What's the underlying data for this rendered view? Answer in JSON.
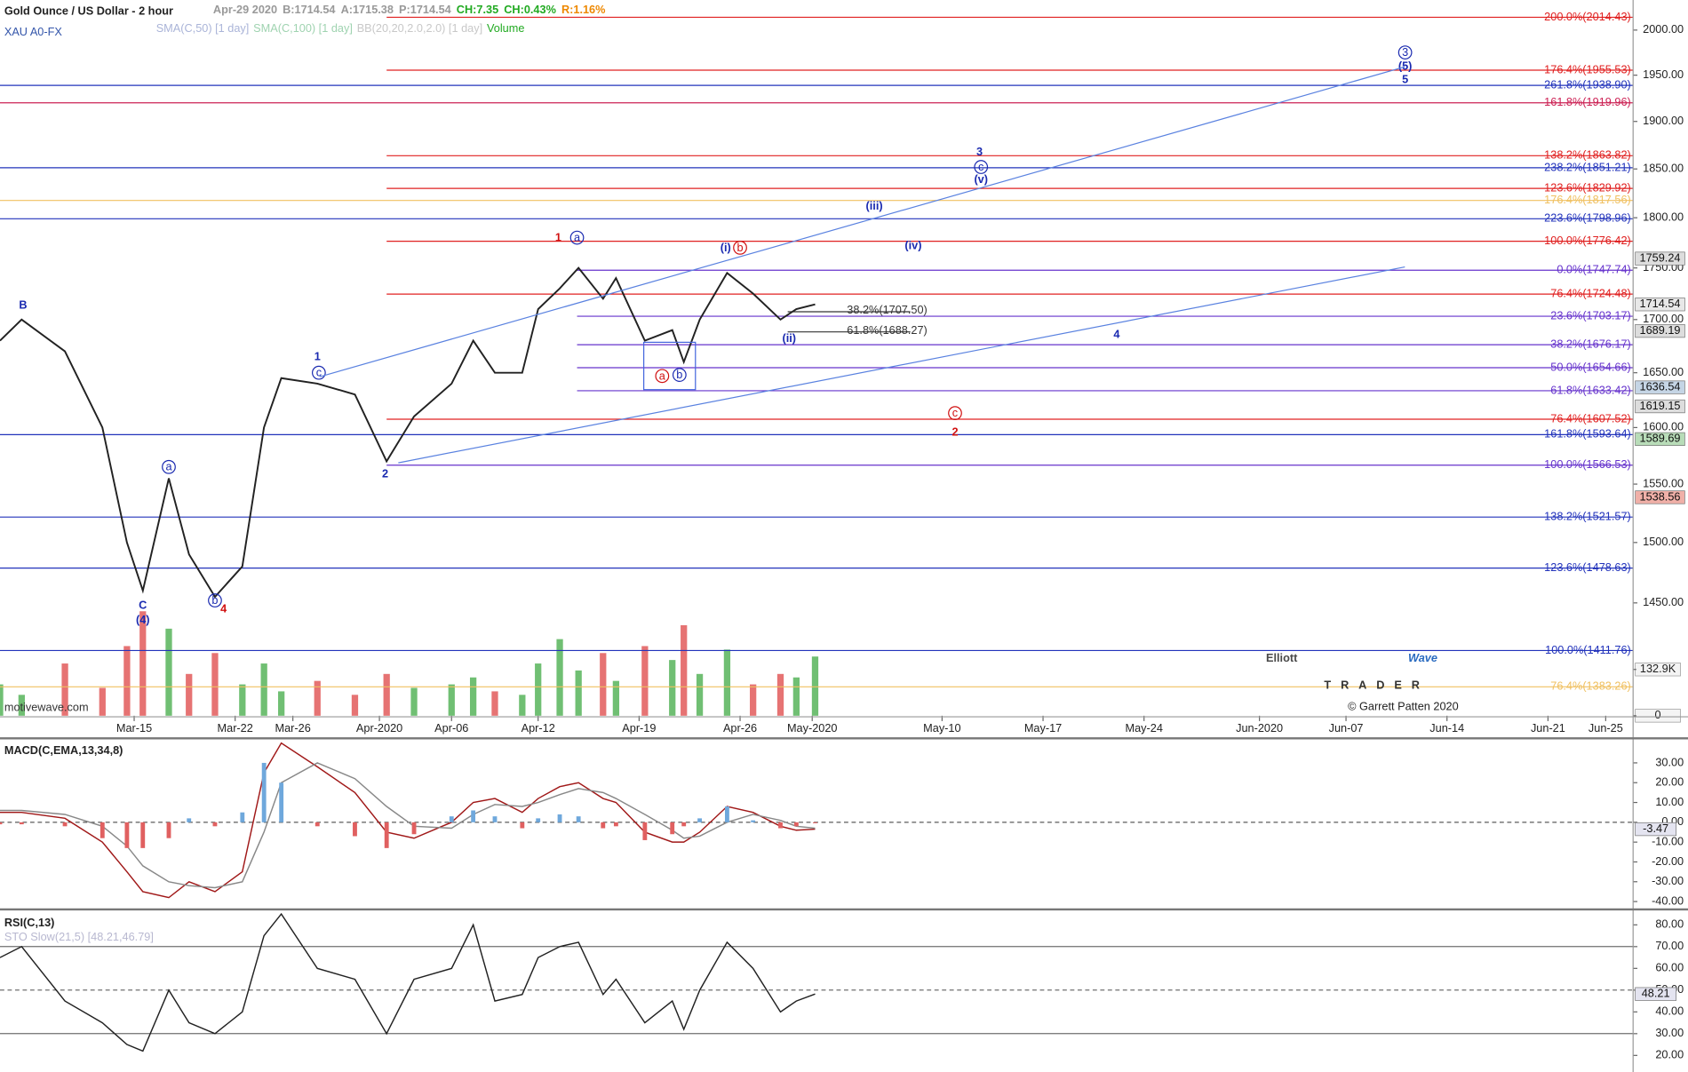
{
  "header": {
    "title": "Gold Ounce / US Dollar - 2 hour",
    "symbol": "XAU A0-FX",
    "quote": [
      {
        "text": "Apr-29 2020",
        "color": "#999999"
      },
      {
        "text": "B:1714.54",
        "color": "#999999"
      },
      {
        "text": "A:1715.38",
        "color": "#999999"
      },
      {
        "text": "P:1714.54",
        "color": "#999999"
      },
      {
        "text": "CH:7.35",
        "color": "#22aa22"
      },
      {
        "text": "CH:0.43%",
        "color": "#22aa22"
      },
      {
        "text": "R:1.16%",
        "color": "#ee8800"
      }
    ],
    "indicators": [
      {
        "text": "SMA(C,50) [1 day]",
        "color": "#aab4d8"
      },
      {
        "text": "SMA(C,100) [1 day]",
        "color": "#9fd3b0"
      },
      {
        "text": "BB(20,20,2.0,2.0) [1 day]",
        "color": "#c8c8c8"
      },
      {
        "text": "Volume",
        "color": "#22aa22"
      }
    ],
    "source": "motivewave.com",
    "brand_a": "Elliott",
    "brand_b": "Wave",
    "brand_sub": "TRADER",
    "copyright": "© Garrett Patten 2020"
  },
  "chart_data": [
    {
      "type": "line",
      "name": "price",
      "log_scale": true,
      "xlim": [
        5.7,
        118.9
      ],
      "xticks": [
        {
          "value": 15,
          "label": "Mar-15"
        },
        {
          "value": 22,
          "label": "Mar-22"
        },
        {
          "value": 26,
          "label": "Mar-26"
        },
        {
          "value": 32,
          "label": "Apr-2020"
        },
        {
          "value": 37,
          "label": "Apr-06"
        },
        {
          "value": 43,
          "label": "Apr-12"
        },
        {
          "value": 50,
          "label": "Apr-19"
        },
        {
          "value": 57,
          "label": "Apr-26"
        },
        {
          "value": 62,
          "label": "May-2020"
        },
        {
          "value": 71,
          "label": "May-10"
        },
        {
          "value": 78,
          "label": "May-17"
        },
        {
          "value": 85,
          "label": "May-24"
        },
        {
          "value": 93,
          "label": "Jun-2020"
        },
        {
          "value": 99,
          "label": "Jun-07"
        },
        {
          "value": 106,
          "label": "Jun-14"
        },
        {
          "value": 113,
          "label": "Jun-21"
        },
        {
          "value": 117,
          "label": "Jun-25"
        }
      ],
      "ylim": [
        1361,
        2034
      ],
      "yticks": [
        {
          "value": 1450,
          "label": "1450.00"
        },
        {
          "value": 1500,
          "label": "1500.00"
        },
        {
          "value": 1550,
          "label": "1550.00"
        },
        {
          "value": 1600,
          "label": "1600.00"
        },
        {
          "value": 1650,
          "label": "1650.00"
        },
        {
          "value": 1700,
          "label": "1700.00"
        },
        {
          "value": 1750,
          "label": "1750.00"
        },
        {
          "value": 1800,
          "label": "1800.00"
        },
        {
          "value": 1850,
          "label": "1850.00"
        },
        {
          "value": 1900,
          "label": "1900.00"
        },
        {
          "value": 1950,
          "label": "1950.00"
        },
        {
          "value": 2000,
          "label": "2000.00"
        }
      ],
      "x": [
        5.7,
        7.2,
        10.2,
        12.8,
        14.5,
        15.6,
        17.4,
        18.8,
        20.6,
        22.5,
        24,
        25.2,
        27.7,
        30.3,
        32.5,
        34.4,
        37,
        38.5,
        40,
        41.9,
        43,
        44.5,
        45.8,
        47.5,
        48.4,
        50.4,
        52.3,
        53.1,
        54.2,
        56.1,
        57.9,
        59.8,
        60.9,
        62.2
      ],
      "series": [
        {
          "name": "XAU A0-FX",
          "color": "#222222",
          "values": [
            1680,
            1700,
            1670,
            1600,
            1500,
            1460,
            1555,
            1490,
            1455,
            1480,
            1600,
            1645,
            1640,
            1630,
            1570,
            1610,
            1640,
            1680,
            1650,
            1650,
            1710,
            1730,
            1750,
            1720,
            1740,
            1680,
            1690,
            1660,
            1700,
            1745,
            1725,
            1700,
            1710,
            1714.54
          ]
        }
      ],
      "volume": {
        "up_color": "#4caf50",
        "down_color": "#e05050",
        "ylim": [
          0,
          432700
        ],
        "yticks": [
          0,
          {
            "value": 132900,
            "label": "132.9K"
          }
        ],
        "values": [
          90000,
          60000,
          150000,
          80000,
          200000,
          300000,
          250000,
          120000,
          180000,
          90000,
          150000,
          70000,
          100000,
          60000,
          120000,
          80000,
          90000,
          110000,
          70000,
          60000,
          150000,
          220000,
          130000,
          180000,
          100000,
          200000,
          160000,
          260000,
          120000,
          190000,
          90000,
          120000,
          110000,
          170000
        ]
      },
      "levels": [
        {
          "value": 2014.43,
          "label": "200.0%(2014.43)",
          "color": "#e02020",
          "from": 32.5
        },
        {
          "value": 1955.53,
          "label": "176.4%(1955.53)",
          "color": "#e02020",
          "from": 32.5
        },
        {
          "value": 1938.9,
          "label": "261.8%(1938.90)",
          "color": "#2233bb"
        },
        {
          "value": 1919.96,
          "label": "161.8%(1919.96)",
          "color": "#cc2255"
        },
        {
          "value": 1863.82,
          "label": "138.2%(1863.82)",
          "color": "#e02020",
          "from": 32.5
        },
        {
          "value": 1851.21,
          "label": "238.2%(1851.21)",
          "color": "#2233bb"
        },
        {
          "value": 1829.92,
          "label": "123.6%(1829.92)",
          "color": "#e02020",
          "from": 32.5
        },
        {
          "value": 1817.56,
          "label": "176.4%(1817.56)",
          "color": "#f0c060"
        },
        {
          "value": 1798.96,
          "label": "223.6%(1798.96)",
          "color": "#2233bb"
        },
        {
          "value": 1776.42,
          "label": "100.0%(1776.42)",
          "color": "#e02020",
          "from": 32.5
        },
        {
          "value": 1747.74,
          "label": "0.0%(1747.74)",
          "color": "#6633cc",
          "from": 45.7
        },
        {
          "value": 1724.48,
          "label": "76.4%(1724.48)",
          "color": "#e02020",
          "from": 32.5
        },
        {
          "value": 1703.17,
          "label": "23.6%(1703.17)",
          "color": "#6633cc",
          "from": 45.7
        },
        {
          "value": 1676.17,
          "label": "38.2%(1676.17)",
          "color": "#6633cc",
          "from": 45.7
        },
        {
          "value": 1654.66,
          "label": "50.0%(1654.66)",
          "color": "#6633cc",
          "from": 45.7
        },
        {
          "value": 1633.42,
          "label": "61.8%(1633.42)",
          "color": "#6633cc",
          "from": 45.7
        },
        {
          "value": 1607.52,
          "label": "76.4%(1607.52)",
          "color": "#e02020",
          "from": 32.5
        },
        {
          "value": 1593.64,
          "label": "161.8%(1593.64)",
          "color": "#2233bb"
        },
        {
          "value": 1566.53,
          "label": "100.0%(1566.53)",
          "color": "#6633cc",
          "from": 32.5
        },
        {
          "value": 1521.57,
          "label": "138.2%(1521.57)",
          "color": "#2233bb"
        },
        {
          "value": 1478.63,
          "label": "123.6%(1478.63)",
          "color": "#2233bb"
        },
        {
          "value": 1411.76,
          "label": "100.0%(1411.76)",
          "color": "#2233bb"
        },
        {
          "value": 1383.26,
          "label": "76.4%(1383.26)",
          "color": "#f0c060"
        },
        {
          "value": 1707.5,
          "label": "38.2%(1707.50)",
          "color": "#333333",
          "from": 60.3,
          "to": 68.8
        },
        {
          "value": 1688.27,
          "label": "61.8%(1688.27)",
          "color": "#333333",
          "from": 60.3,
          "to": 68.8
        }
      ],
      "price_tags": [
        {
          "value": 1759.24,
          "color": "#dddddd"
        },
        {
          "value": 1714.54,
          "color": "#e8e8e8"
        },
        {
          "value": 1689.19,
          "color": "#dddddd"
        },
        {
          "value": 1636.54,
          "color": "#c5d5e5"
        },
        {
          "value": 1619.15,
          "color": "#dddddd"
        },
        {
          "value": 1589.69,
          "color": "#b8dcb8"
        },
        {
          "value": 1538.56,
          "color": "#f0b0a8"
        }
      ],
      "waves": [
        {
          "text": "B",
          "x": 7.3,
          "price": 1714,
          "color": "#1a2ab0"
        },
        {
          "text": "C",
          "x": 15.6,
          "price": 1448,
          "color": "#1a2ab0"
        },
        {
          "text": "(4)",
          "x": 15.6,
          "price": 1436,
          "color": "#1a2ab0"
        },
        {
          "text": "a",
          "x": 17.4,
          "price": 1565,
          "color": "#1a2ab0",
          "circle": true
        },
        {
          "text": "b",
          "x": 20.6,
          "price": 1452,
          "color": "#1a2ab0",
          "circle": true
        },
        {
          "text": "4",
          "x": 21.2,
          "price": 1445,
          "color": "#d01010"
        },
        {
          "text": "1",
          "x": 27.7,
          "price": 1665,
          "color": "#1a2ab0"
        },
        {
          "text": "c",
          "x": 27.8,
          "price": 1650,
          "color": "#1a2ab0",
          "circle": true
        },
        {
          "text": "2",
          "x": 32.4,
          "price": 1559,
          "color": "#1a2ab0"
        },
        {
          "text": "1",
          "x": 44.4,
          "price": 1780,
          "color": "#d01010"
        },
        {
          "text": "a",
          "x": 45.7,
          "price": 1780,
          "color": "#1a2ab0",
          "circle": true
        },
        {
          "text": "a",
          "x": 51.6,
          "price": 1647,
          "color": "#d01010",
          "circle": true
        },
        {
          "text": "b",
          "x": 52.8,
          "price": 1648,
          "color": "#1a2ab0",
          "circle": true
        },
        {
          "text": "(i)",
          "x": 56.0,
          "price": 1770,
          "color": "#1a2ab0"
        },
        {
          "text": "b",
          "x": 57.0,
          "price": 1770,
          "color": "#d01010",
          "circle": true
        },
        {
          "text": "(ii)",
          "x": 60.4,
          "price": 1682,
          "color": "#1a2ab0"
        },
        {
          "text": "(iii)",
          "x": 66.3,
          "price": 1812,
          "color": "#1a2ab0"
        },
        {
          "text": "(iv)",
          "x": 69.0,
          "price": 1772,
          "color": "#1a2ab0"
        },
        {
          "text": "3",
          "x": 73.6,
          "price": 1868,
          "color": "#1a2ab0"
        },
        {
          "text": "c",
          "x": 73.7,
          "price": 1852,
          "color": "#1a2ab0",
          "circle": true
        },
        {
          "text": "(v)",
          "x": 73.7,
          "price": 1839,
          "color": "#1a2ab0"
        },
        {
          "text": "c",
          "x": 71.9,
          "price": 1613,
          "color": "#d01010",
          "circle": true
        },
        {
          "text": "2",
          "x": 71.9,
          "price": 1596,
          "color": "#d01010"
        },
        {
          "text": "4",
          "x": 83.1,
          "price": 1686,
          "color": "#1a2ab0"
        },
        {
          "text": "3",
          "x": 103.1,
          "price": 1975,
          "color": "#1a2ab0",
          "circle": true
        },
        {
          "text": "(5)",
          "x": 103.1,
          "price": 1960,
          "color": "#1a2ab0"
        },
        {
          "text": "5",
          "x": 103.1,
          "price": 1945,
          "color": "#1a2ab0"
        }
      ]
    },
    {
      "type": "line",
      "name": "macd",
      "title": "MACD(C,EMA,13,34,8)",
      "ylim": [
        -42.9,
        41.3
      ],
      "yticks": [
        {
          "value": 30,
          "label": "30.00"
        },
        {
          "value": 20,
          "label": "20.00"
        },
        {
          "value": 10,
          "label": "10.00"
        },
        {
          "value": 0,
          "label": "0.00"
        },
        {
          "value": -10,
          "label": "-10.00"
        },
        {
          "value": -20,
          "label": "-20.00"
        },
        {
          "value": -30,
          "label": "-30.00"
        },
        {
          "value": -40,
          "label": "-40.00"
        }
      ],
      "guides": [
        0
      ],
      "series": [
        {
          "name": "MACD",
          "color": "#a01818",
          "values": [
            5,
            5,
            2,
            -10,
            -25,
            -35,
            -38,
            -30,
            -35,
            -25,
            25,
            40,
            28,
            15,
            -5,
            -8,
            0,
            10,
            12,
            5,
            12,
            18,
            20,
            12,
            10,
            -5,
            -10,
            -10,
            -5,
            8,
            5,
            -2,
            -4,
            -3.47
          ]
        },
        {
          "name": "Signal",
          "color": "#888888",
          "values": [
            6,
            6,
            4,
            -2,
            -12,
            -22,
            -30,
            -32,
            -33,
            -30,
            -5,
            20,
            30,
            22,
            8,
            -2,
            -3,
            4,
            9,
            8,
            10,
            14,
            17,
            15,
            12,
            4,
            -4,
            -8,
            -7,
            0,
            4,
            1,
            -2,
            -3
          ]
        }
      ]
    },
    {
      "type": "line",
      "name": "rsi",
      "title": "RSI(C,13)",
      "subtitle": "STO Slow(21,5) [48.21,46.79]",
      "ylim": [
        12.4,
        85.6
      ],
      "yticks": [
        {
          "value": 80,
          "label": "80.00"
        },
        {
          "value": 70,
          "label": "70.00"
        },
        {
          "value": 60,
          "label": "60.00"
        },
        {
          "value": 50,
          "label": "50.00"
        },
        {
          "value": 40,
          "label": "40.00"
        },
        {
          "value": 30,
          "label": "30.00"
        },
        {
          "value": 20,
          "label": "20.00"
        }
      ],
      "guides": [
        70,
        50,
        30
      ],
      "series": [
        {
          "name": "RSI",
          "color": "#222222",
          "values": [
            65,
            70,
            45,
            35,
            25,
            22,
            50,
            35,
            30,
            40,
            75,
            85,
            60,
            55,
            30,
            55,
            60,
            80,
            45,
            48,
            65,
            70,
            72,
            48,
            55,
            35,
            45,
            32,
            50,
            72,
            60,
            40,
            45,
            48.21
          ]
        }
      ]
    }
  ]
}
